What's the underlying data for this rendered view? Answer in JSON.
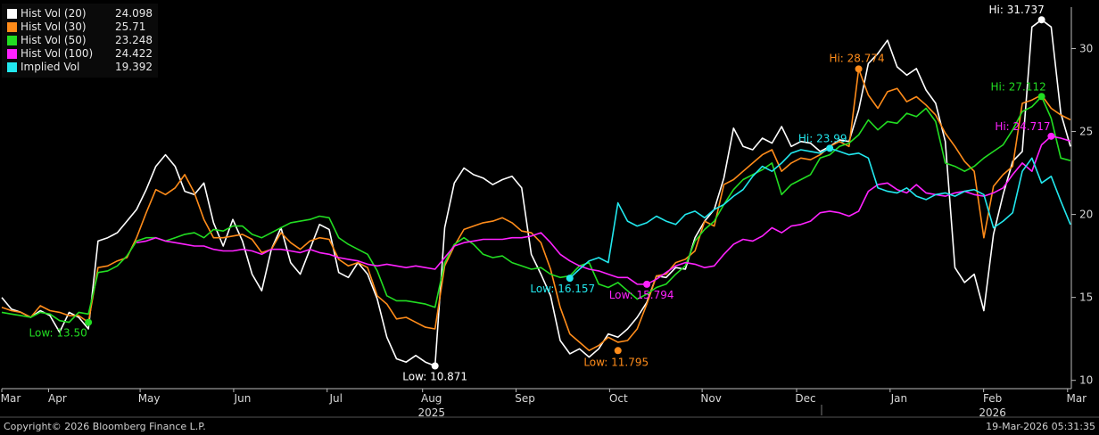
{
  "chart_data": {
    "type": "line",
    "x_ticks": [
      "Mar",
      "Apr",
      "May",
      "Jun",
      "Jul",
      "Aug",
      "Sep",
      "Oct",
      "Nov",
      "Dec",
      "Jan",
      "Feb",
      "Mar"
    ],
    "year_labels": [
      "2025",
      "2026"
    ],
    "ylim": [
      9.5,
      32.5
    ],
    "y_ticks": [
      10,
      15,
      20,
      25,
      30
    ],
    "grid": false,
    "legend_position": "top-left",
    "series": [
      {
        "name": "Hist Vol (20)",
        "last": "24.098",
        "color": "#ffffff",
        "values": [
          15,
          14.3,
          14.1,
          13.8,
          14.2,
          13.9,
          12.9,
          14.1,
          13.8,
          13.1,
          18.4,
          18.6,
          18.9,
          19.6,
          20.3,
          21.5,
          22.9,
          23.6,
          22.9,
          21.4,
          21.2,
          21.9,
          19.5,
          18.1,
          19.7,
          18.4,
          16.4,
          15.4,
          17.9,
          19.2,
          17.1,
          16.4,
          17.9,
          19.4,
          19.1,
          16.5,
          16.2,
          17.1,
          16.4,
          14.9,
          12.6,
          11.3,
          11.1,
          11.5,
          11.1,
          10.87,
          19.2,
          21.9,
          22.8,
          22.4,
          22.2,
          21.8,
          22.1,
          22.3,
          21.6,
          17.6,
          16.4,
          15.1,
          12.4,
          11.6,
          11.9,
          11.4,
          11.9,
          12.8,
          12.6,
          13.1,
          13.8,
          14.7,
          16.3,
          16.2,
          16.8,
          16.7,
          18.6,
          19.6,
          20.3,
          22.2,
          25.2,
          24.1,
          23.9,
          24.6,
          24.3,
          25.3,
          24.1,
          24.4,
          24.3,
          23.8,
          24.1,
          24.5,
          24.4,
          26.3,
          29.1,
          29.7,
          30.5,
          28.9,
          28.4,
          28.8,
          27.5,
          26.7,
          24.4,
          16.8,
          15.9,
          16.4,
          14.2,
          18.8,
          21.2,
          23.2,
          23.8,
          31.3,
          31.737,
          31.3,
          26.1,
          24.098
        ]
      },
      {
        "name": "Hist Vol (30)",
        "last": "25.71",
        "color": "#ff8c1a",
        "values": [
          14.4,
          14.2,
          14.1,
          13.8,
          14.5,
          14.2,
          14.1,
          13.9,
          13.9,
          13.5,
          16.8,
          16.9,
          17.2,
          17.4,
          18.6,
          20.1,
          21.5,
          21.2,
          21.6,
          22.4,
          21.3,
          19.7,
          18.6,
          18.6,
          18.7,
          18.8,
          18.5,
          17.7,
          17.9,
          18.9,
          18.3,
          17.9,
          18.4,
          18.6,
          18.5,
          17.3,
          16.9,
          17.1,
          16.8,
          15.1,
          14.6,
          13.7,
          13.8,
          13.5,
          13.2,
          13.1,
          16.9,
          18.1,
          19.1,
          19.3,
          19.5,
          19.6,
          19.8,
          19.5,
          19.0,
          18.9,
          18.3,
          16.7,
          14.4,
          12.8,
          12.3,
          11.8,
          12.1,
          12.6,
          12.3,
          12.4,
          13.1,
          14.6,
          16.3,
          16.4,
          17.1,
          17.3,
          17.8,
          19.6,
          19.3,
          21.8,
          22.1,
          22.6,
          23.1,
          23.6,
          23.9,
          22.6,
          23.1,
          23.4,
          23.3,
          23.6,
          24.1,
          24.4,
          24.1,
          28.774,
          27.2,
          26.4,
          27.4,
          27.6,
          26.8,
          27.1,
          26.6,
          26.0,
          24.9,
          24.1,
          23.2,
          22.6,
          18.6,
          21.7,
          22.4,
          22.9,
          26.7,
          26.9,
          27.2,
          26.4,
          26.0,
          25.71
        ]
      },
      {
        "name": "Hist Vol (50)",
        "last": "23.248",
        "color": "#22dd22",
        "values": [
          14.1,
          14.0,
          13.9,
          13.8,
          14.1,
          14.0,
          13.6,
          13.5,
          14.1,
          14.0,
          16.5,
          16.6,
          16.9,
          17.5,
          18.4,
          18.6,
          18.6,
          18.4,
          18.6,
          18.8,
          18.9,
          18.6,
          19.1,
          19.0,
          19.3,
          19.3,
          18.8,
          18.6,
          18.9,
          19.2,
          19.5,
          19.6,
          19.7,
          19.9,
          19.8,
          18.6,
          18.2,
          17.9,
          17.6,
          16.6,
          15.1,
          14.8,
          14.8,
          14.7,
          14.6,
          14.4,
          17.1,
          18.2,
          18.6,
          18.2,
          17.6,
          17.4,
          17.5,
          17.1,
          16.9,
          16.7,
          16.8,
          16.4,
          16.2,
          16.3,
          16.9,
          17.1,
          15.8,
          15.6,
          15.9,
          15.4,
          14.9,
          15.2,
          15.6,
          15.8,
          16.4,
          16.9,
          18.4,
          19.1,
          19.6,
          20.6,
          21.5,
          22.1,
          22.4,
          22.7,
          23.1,
          21.2,
          21.8,
          22.1,
          22.4,
          23.4,
          23.6,
          24.1,
          24.3,
          24.8,
          25.7,
          25.1,
          25.6,
          25.5,
          26.1,
          25.9,
          26.4,
          25.6,
          23.1,
          22.9,
          22.6,
          22.9,
          23.4,
          23.8,
          24.2,
          25.1,
          26.2,
          26.5,
          27.112,
          25.8,
          23.4,
          23.248
        ]
      },
      {
        "name": "Hist Vol (100)",
        "last": "24.422",
        "color": "#ff22ff",
        "values": [
          null,
          null,
          null,
          null,
          null,
          null,
          null,
          null,
          null,
          null,
          null,
          null,
          null,
          null,
          18.3,
          18.4,
          18.6,
          18.4,
          18.3,
          18.2,
          18.1,
          18.1,
          17.9,
          17.8,
          17.8,
          17.9,
          17.8,
          17.6,
          17.9,
          17.9,
          17.8,
          17.7,
          17.9,
          17.7,
          17.6,
          17.4,
          17.3,
          17.2,
          17.0,
          16.9,
          17.0,
          16.9,
          16.8,
          16.9,
          16.8,
          16.7,
          17.4,
          18.1,
          18.3,
          18.4,
          18.5,
          18.5,
          18.5,
          18.6,
          18.6,
          18.7,
          18.9,
          18.3,
          17.6,
          17.2,
          16.9,
          16.7,
          16.6,
          16.4,
          16.2,
          16.2,
          15.8,
          15.794,
          16.1,
          16.5,
          16.9,
          17.1,
          17.0,
          16.8,
          16.9,
          17.6,
          18.2,
          18.5,
          18.4,
          18.7,
          19.2,
          18.9,
          19.3,
          19.4,
          19.6,
          20.1,
          20.2,
          20.1,
          19.9,
          20.2,
          21.4,
          21.8,
          21.9,
          21.5,
          21.3,
          21.8,
          21.3,
          21.2,
          21.1,
          21.3,
          21.4,
          21.2,
          21.1,
          21.3,
          21.6,
          22.4,
          23.1,
          22.6,
          24.2,
          24.717,
          24.6,
          24.422
        ]
      },
      {
        "name": "Implied Vol",
        "last": "19.392",
        "color": "#22e8ee",
        "values": [
          null,
          null,
          null,
          null,
          null,
          null,
          null,
          null,
          null,
          null,
          null,
          null,
          null,
          null,
          null,
          null,
          null,
          null,
          null,
          null,
          null,
          null,
          null,
          null,
          null,
          null,
          null,
          null,
          null,
          null,
          null,
          null,
          null,
          null,
          null,
          null,
          null,
          null,
          null,
          null,
          null,
          null,
          null,
          null,
          null,
          null,
          null,
          null,
          null,
          null,
          null,
          null,
          null,
          null,
          null,
          null,
          null,
          null,
          null,
          16.157,
          16.7,
          17.2,
          17.4,
          17.1,
          20.7,
          19.6,
          19.3,
          19.5,
          19.9,
          19.6,
          19.4,
          20.0,
          20.2,
          19.8,
          20.3,
          20.6,
          21.1,
          21.5,
          22.3,
          22.9,
          22.6,
          23.1,
          23.7,
          23.9,
          23.8,
          23.7,
          23.99,
          23.8,
          23.6,
          23.7,
          23.4,
          21.6,
          21.4,
          21.3,
          21.6,
          21.1,
          20.9,
          21.2,
          21.3,
          21.1,
          21.4,
          21.5,
          21.2,
          19.2,
          19.6,
          20.1,
          22.6,
          23.4,
          21.9,
          22.3,
          20.8,
          19.392
        ]
      }
    ],
    "annotations": [
      {
        "text": "Low: 13.50",
        "series": "Hist Vol (50)"
      },
      {
        "text": "Low: 10.871",
        "series": "Hist Vol (20)"
      },
      {
        "text": "Low: 16.157",
        "series": "Implied Vol"
      },
      {
        "text": "Low: 15.794",
        "series": "Hist Vol (100)"
      },
      {
        "text": "Low: 11.795",
        "series": "Hist Vol (30)"
      },
      {
        "text": "Hi: 28.774",
        "series": "Hist Vol (30)"
      },
      {
        "text": "Hi: 23.99",
        "series": "Implied Vol"
      },
      {
        "text": "Hi: 31.737",
        "series": "Hist Vol (20)"
      },
      {
        "text": "Hi: 27.112",
        "series": "Hist Vol (50)"
      },
      {
        "text": "Hi: 24.717",
        "series": "Hist Vol (100)"
      }
    ]
  },
  "footer": {
    "copyright": "Copyright© 2026 Bloomberg Finance L.P.",
    "timestamp": "19-Mar-2026 05:31:35"
  }
}
